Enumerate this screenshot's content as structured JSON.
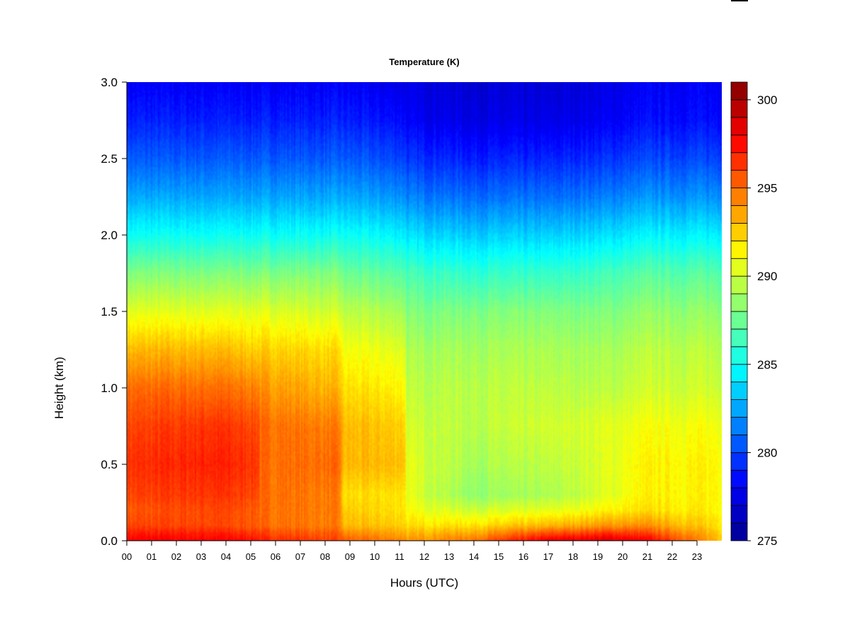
{
  "chart_data": {
    "type": "heatmap",
    "title": "Temperature (K)",
    "xlabel": "Hours (UTC)",
    "ylabel": "Height (km)",
    "xlim": [
      0,
      24
    ],
    "ylim": [
      0,
      3.0
    ],
    "x_ticks": [
      "00",
      "01",
      "02",
      "03",
      "04",
      "05",
      "06",
      "07",
      "08",
      "09",
      "10",
      "11",
      "12",
      "13",
      "14",
      "15",
      "16",
      "17",
      "18",
      "19",
      "20",
      "21",
      "22",
      "23"
    ],
    "y_ticks": [
      "0.0",
      "0.5",
      "1.0",
      "1.5",
      "2.0",
      "2.5",
      "3.0"
    ],
    "colorbar": {
      "min": 275,
      "max": 301,
      "step": 1,
      "tick_labels": [
        "275",
        "280",
        "285",
        "290",
        "295",
        "300"
      ],
      "palette": [
        "#00008f",
        "#0000ff",
        "#0080ff",
        "#00ffff",
        "#80ff80",
        "#ffff00",
        "#ff8000",
        "#ff0000",
        "#800000"
      ]
    },
    "y": [
      0.0,
      0.1,
      0.2,
      0.3,
      0.5,
      0.75,
      1.0,
      1.25,
      1.5,
      1.75,
      2.0,
      2.25,
      2.5,
      2.75,
      3.0
    ],
    "profiles": [
      {
        "hour": 0,
        "values": [
          298,
          296,
          295.5,
          296,
          296.5,
          296,
          295,
          293,
          290.5,
          288,
          285,
          282.5,
          280.5,
          279,
          278
        ]
      },
      {
        "hour": 3.5,
        "values": [
          298,
          296,
          296,
          296.5,
          297,
          296.5,
          295,
          293,
          290.5,
          288,
          285,
          282.5,
          280.5,
          279,
          278
        ]
      },
      {
        "hour": 5.3,
        "values": [
          297.5,
          295.5,
          295.5,
          296,
          296.5,
          296,
          294.5,
          292.5,
          290.5,
          288,
          285,
          282.5,
          280.5,
          279,
          278
        ]
      },
      {
        "hour": 5.4,
        "values": [
          297,
          295,
          295,
          295,
          295,
          295,
          294,
          292.5,
          290.5,
          288,
          285,
          282.5,
          280.5,
          279,
          278
        ]
      },
      {
        "hour": 8.6,
        "values": [
          296,
          294.5,
          294.5,
          294.5,
          295,
          294.5,
          293,
          292,
          290,
          288,
          285,
          282.5,
          280.5,
          279,
          278
        ]
      },
      {
        "hour": 8.7,
        "values": [
          295.5,
          293,
          292.5,
          292,
          293,
          293,
          292,
          291,
          289.5,
          287.5,
          285,
          282.5,
          280.5,
          279,
          278
        ]
      },
      {
        "hour": 11.2,
        "values": [
          294.5,
          292.5,
          292,
          292,
          293,
          292.5,
          291.5,
          290.5,
          289,
          287,
          284.5,
          282,
          280,
          278.5,
          277.5
        ]
      },
      {
        "hour": 11.3,
        "values": [
          294,
          292,
          291,
          290.5,
          290.5,
          290,
          289.5,
          289,
          288,
          286.5,
          284,
          281.5,
          279.5,
          278,
          277.5
        ]
      },
      {
        "hour": 14,
        "values": [
          295,
          292,
          290,
          288.5,
          289,
          289.5,
          289.5,
          289,
          288,
          286,
          283.5,
          281,
          279,
          277.5,
          277
        ]
      },
      {
        "hour": 17,
        "values": [
          298.5,
          293,
          290.5,
          289,
          289.5,
          290,
          289.5,
          289,
          288,
          286,
          283.5,
          281,
          279,
          277.5,
          277
        ]
      },
      {
        "hour": 19.5,
        "values": [
          299,
          294,
          291.5,
          290.5,
          290.5,
          290.5,
          289.5,
          289,
          288,
          286.5,
          284,
          281.5,
          279.5,
          278,
          277.5
        ]
      },
      {
        "hour": 21,
        "values": [
          298,
          294,
          292,
          291.5,
          291.5,
          291,
          290,
          289.5,
          288.5,
          287,
          284.5,
          282,
          280,
          278.5,
          278
        ]
      },
      {
        "hour": 24,
        "values": [
          293,
          292,
          291.5,
          291.5,
          291.5,
          291,
          290,
          289.5,
          288.5,
          287,
          284.5,
          282,
          280,
          278.5,
          278
        ]
      }
    ]
  }
}
